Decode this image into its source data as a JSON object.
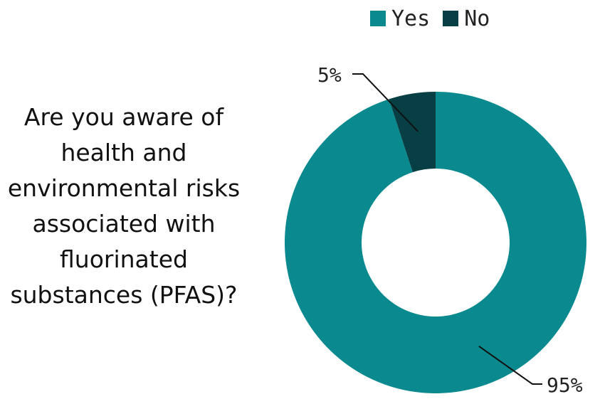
{
  "question": "Are you aware of health and environmental risks associated with fluorinated substances (PFAS)?",
  "chart_data": {
    "type": "pie",
    "donut": true,
    "categories": [
      "Yes",
      "No"
    ],
    "values": [
      95,
      5
    ],
    "labels": [
      "95%",
      "5%"
    ],
    "colors": [
      "#0a8a8f",
      "#073f45"
    ],
    "legend_position": "top-right"
  }
}
